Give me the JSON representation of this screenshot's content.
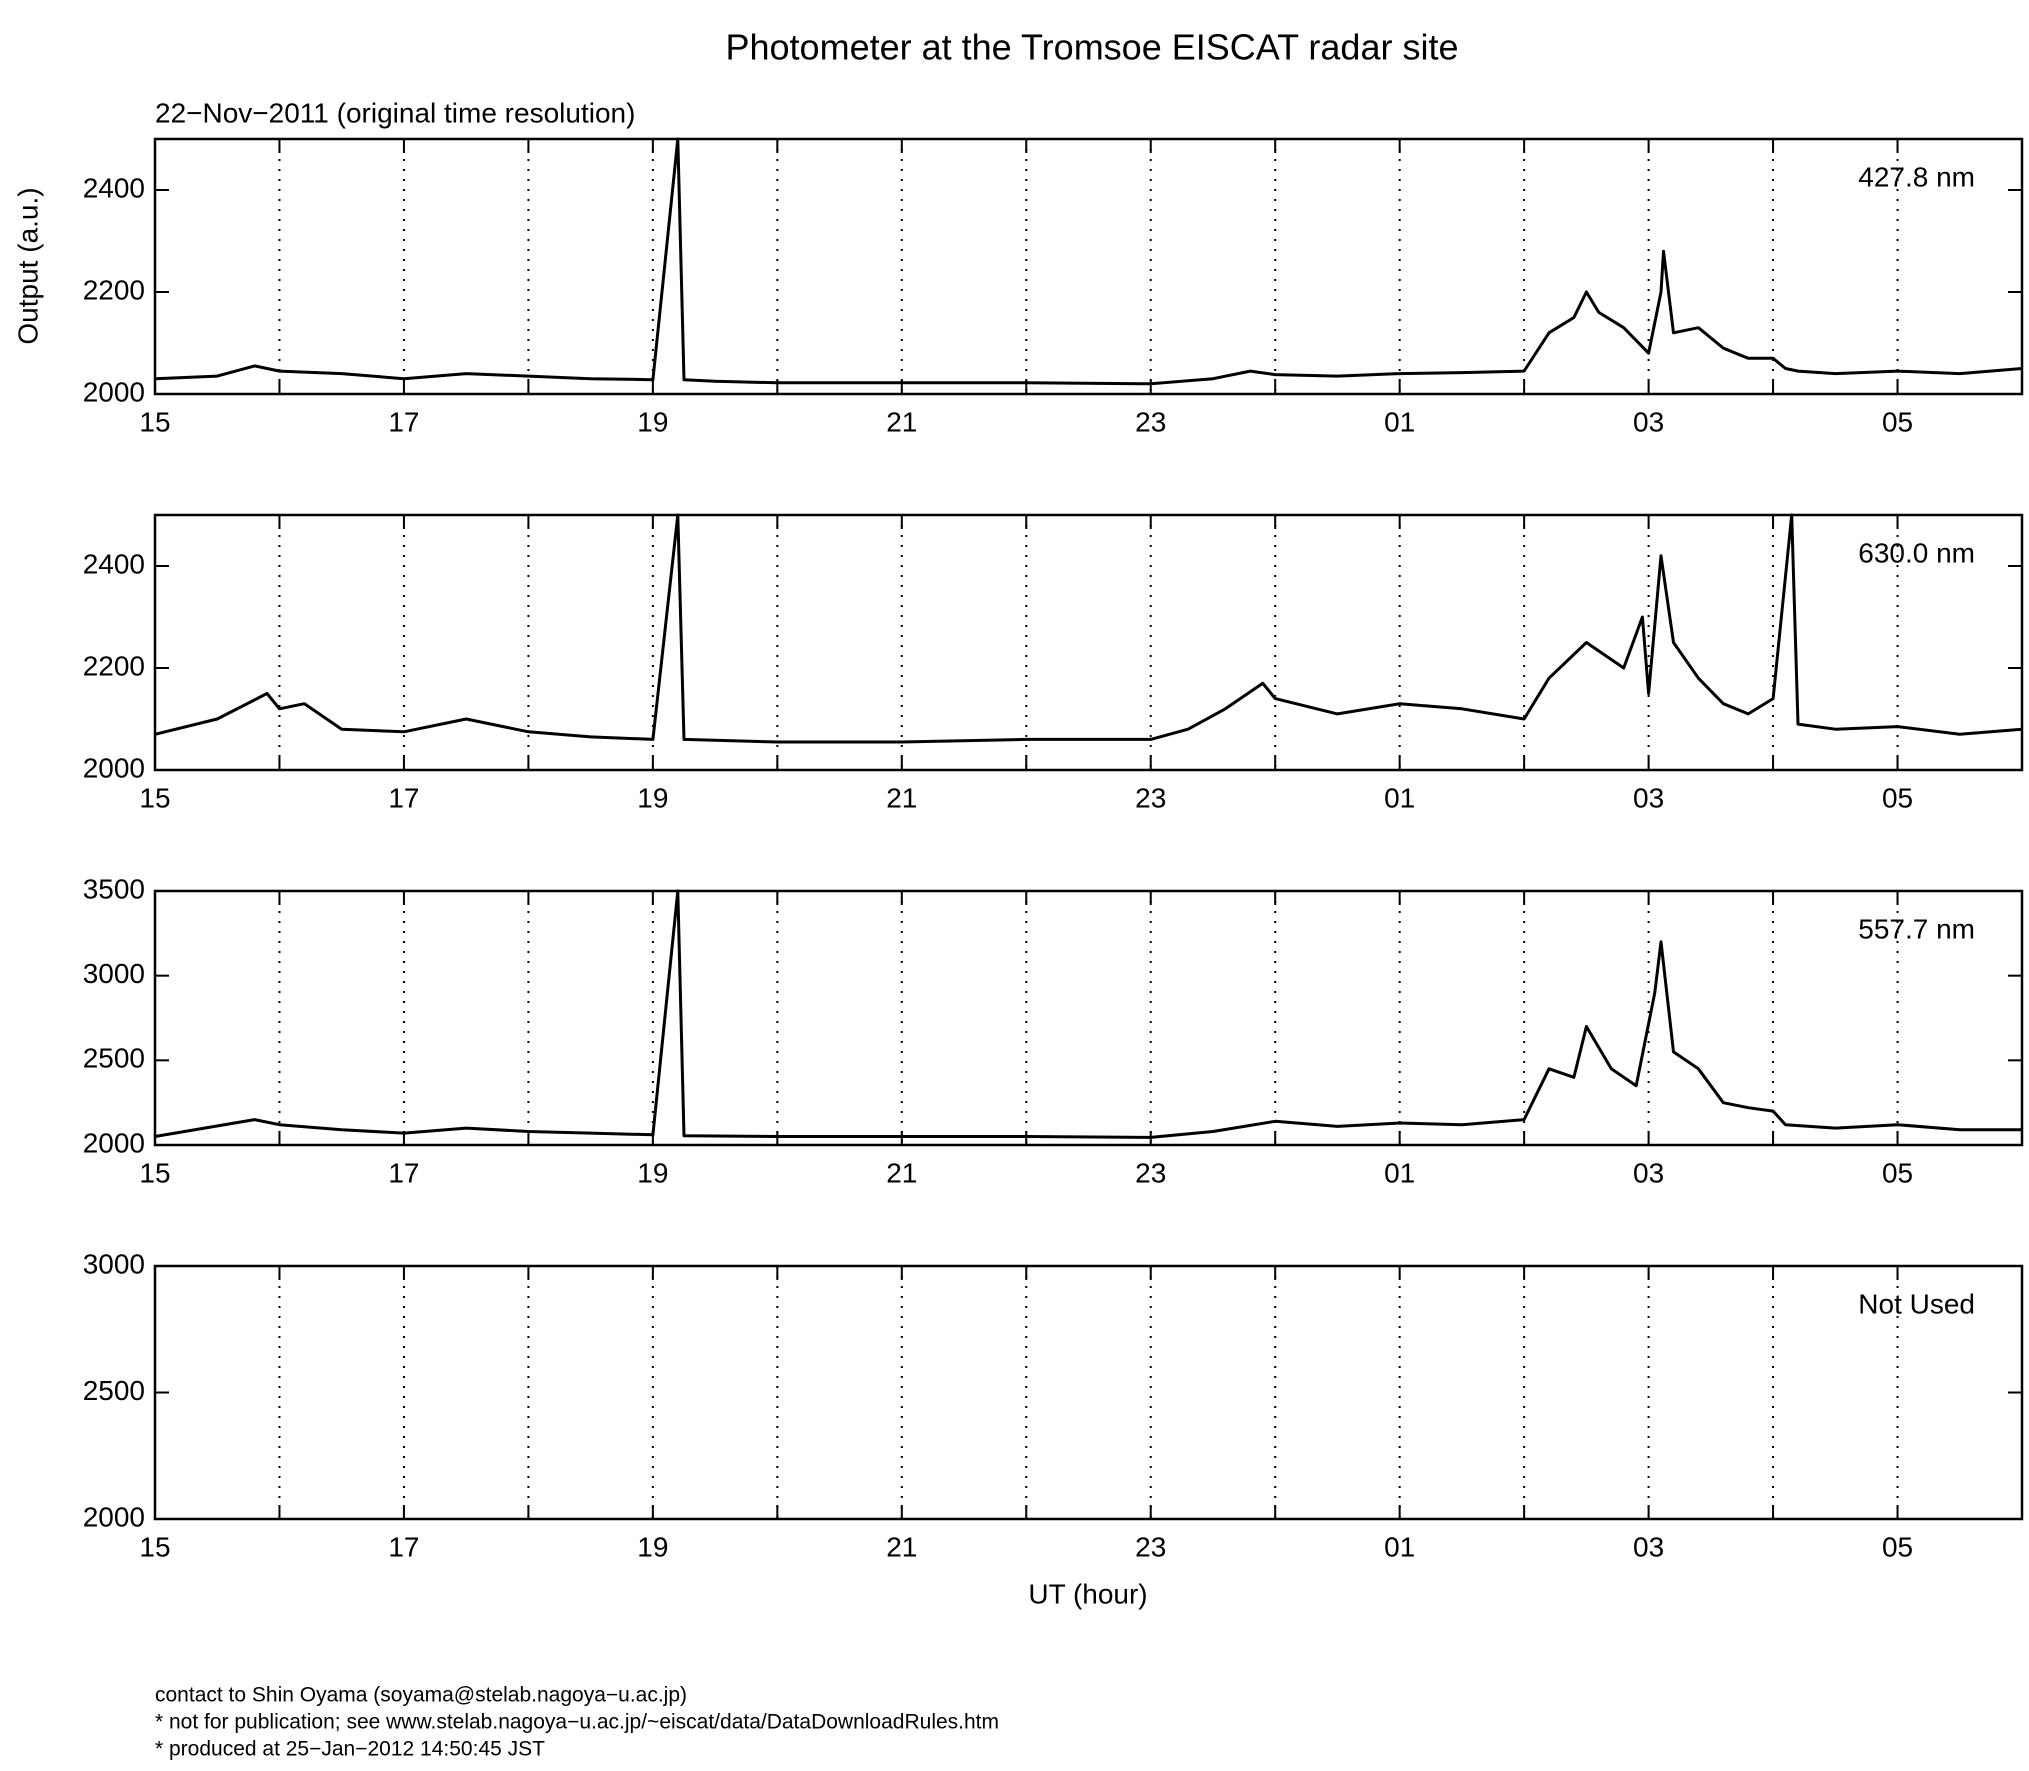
{
  "title": "Photometer at the Tromsoe EISCAT radar site",
  "subtitle": "22−Nov−2011 (original time resolution)",
  "ylabel": "Output (a.u.)",
  "xlabel": "UT (hour)",
  "footer": [
    "contact to Shin Oyama (soyama@stelab.nagoya−u.ac.jp)",
    "* not for publication; see www.stelab.nagoya−u.ac.jp/~eiscat/data/DataDownloadRules.htm",
    "* produced at 25−Jan−2012 14:50:45 JST"
  ],
  "chart_data": [
    {
      "type": "line",
      "label": "427.8 nm",
      "color": "#000000",
      "x": [
        15,
        15.5,
        15.8,
        16,
        16.5,
        17,
        17.5,
        18,
        18.5,
        19,
        19.2,
        19.25,
        19.5,
        20,
        21,
        22,
        23,
        23.5,
        23.8,
        24,
        24.5,
        25,
        25.5,
        26,
        26.2,
        26.4,
        26.5,
        26.6,
        26.8,
        27,
        27.1,
        27.12,
        27.2,
        27.4,
        27.6,
        27.8,
        28,
        28.1,
        28.2,
        28.5,
        29,
        29.5,
        30
      ],
      "values": [
        2030,
        2035,
        2055,
        2045,
        2040,
        2030,
        2040,
        2035,
        2030,
        2028,
        2500,
        2028,
        2025,
        2022,
        2022,
        2022,
        2020,
        2030,
        2045,
        2038,
        2035,
        2040,
        2042,
        2045,
        2120,
        2150,
        2200,
        2160,
        2130,
        2080,
        2200,
        2280,
        2120,
        2130,
        2090,
        2070,
        2070,
        2050,
        2045,
        2040,
        2045,
        2040,
        2050
      ],
      "xlim": [
        15,
        30
      ],
      "xticks": [
        15,
        17,
        19,
        21,
        23,
        {
          "value": 25,
          "label": "01"
        },
        {
          "value": 27,
          "label": "03"
        },
        {
          "value": 29,
          "label": "05"
        }
      ],
      "x_minor_ticks": [
        16,
        18,
        20,
        22,
        24,
        26,
        28
      ],
      "ylim": [
        2000,
        2500
      ],
      "yticks": [
        2000,
        2200,
        2400
      ],
      "grid": true
    },
    {
      "type": "line",
      "label": "630.0 nm",
      "color": "#000000",
      "x": [
        15,
        15.5,
        15.9,
        16,
        16.2,
        16.5,
        17,
        17.5,
        18,
        18.5,
        19,
        19.2,
        19.25,
        20,
        21,
        22,
        23,
        23.3,
        23.6,
        23.9,
        24,
        24.5,
        25,
        25.5,
        26,
        26.2,
        26.5,
        26.8,
        26.95,
        27,
        27.1,
        27.2,
        27.4,
        27.6,
        27.8,
        28,
        28.15,
        28.2,
        28.5,
        29,
        29.5,
        30
      ],
      "values": [
        2070,
        2100,
        2150,
        2120,
        2130,
        2080,
        2075,
        2100,
        2075,
        2065,
        2060,
        2500,
        2060,
        2055,
        2055,
        2060,
        2060,
        2080,
        2120,
        2170,
        2140,
        2110,
        2130,
        2120,
        2100,
        2180,
        2250,
        2200,
        2300,
        2150,
        2420,
        2250,
        2180,
        2130,
        2110,
        2140,
        2500,
        2090,
        2080,
        2085,
        2070,
        2080
      ],
      "xlim": [
        15,
        30
      ],
      "xticks": [
        15,
        17,
        19,
        21,
        23,
        {
          "value": 25,
          "label": "01"
        },
        {
          "value": 27,
          "label": "03"
        },
        {
          "value": 29,
          "label": "05"
        }
      ],
      "x_minor_ticks": [
        16,
        18,
        20,
        22,
        24,
        26,
        28
      ],
      "ylim": [
        2000,
        2500
      ],
      "yticks": [
        2000,
        2200,
        2400
      ],
      "grid": true
    },
    {
      "type": "line",
      "label": "557.7 nm",
      "color": "#000000",
      "x": [
        15,
        15.8,
        16,
        16.5,
        17,
        17.5,
        18,
        18.5,
        19,
        19.2,
        19.25,
        20,
        21,
        22,
        23,
        23.5,
        24,
        24.5,
        25,
        25.5,
        26,
        26.2,
        26.4,
        26.5,
        26.7,
        26.9,
        27.05,
        27.1,
        27.2,
        27.4,
        27.6,
        27.8,
        28,
        28.1,
        28.5,
        29,
        29.5,
        30
      ],
      "values": [
        2050,
        2150,
        2120,
        2090,
        2070,
        2100,
        2080,
        2070,
        2060,
        3500,
        2055,
        2050,
        2050,
        2050,
        2045,
        2080,
        2140,
        2110,
        2130,
        2120,
        2150,
        2450,
        2400,
        2700,
        2450,
        2350,
        2900,
        3200,
        2550,
        2450,
        2250,
        2220,
        2200,
        2120,
        2100,
        2120,
        2090,
        2090
      ],
      "xlim": [
        15,
        30
      ],
      "xticks": [
        15,
        17,
        19,
        21,
        23,
        {
          "value": 25,
          "label": "01"
        },
        {
          "value": 27,
          "label": "03"
        },
        {
          "value": 29,
          "label": "05"
        }
      ],
      "x_minor_ticks": [
        16,
        18,
        20,
        22,
        24,
        26,
        28
      ],
      "ylim": [
        2000,
        3500
      ],
      "yticks": [
        2000,
        2500,
        3000,
        3500
      ],
      "grid": true
    },
    {
      "type": "empty",
      "label": "Not Used",
      "xlim": [
        15,
        30
      ],
      "xticks": [
        15,
        17,
        19,
        21,
        23,
        {
          "value": 25,
          "label": "01"
        },
        {
          "value": 27,
          "label": "03"
        },
        {
          "value": 29,
          "label": "05"
        }
      ],
      "x_minor_ticks": [
        16,
        18,
        20,
        22,
        24,
        26,
        28
      ],
      "ylim": [
        2000,
        3000
      ],
      "yticks": [
        2000,
        2500,
        3000
      ],
      "grid": true
    }
  ]
}
